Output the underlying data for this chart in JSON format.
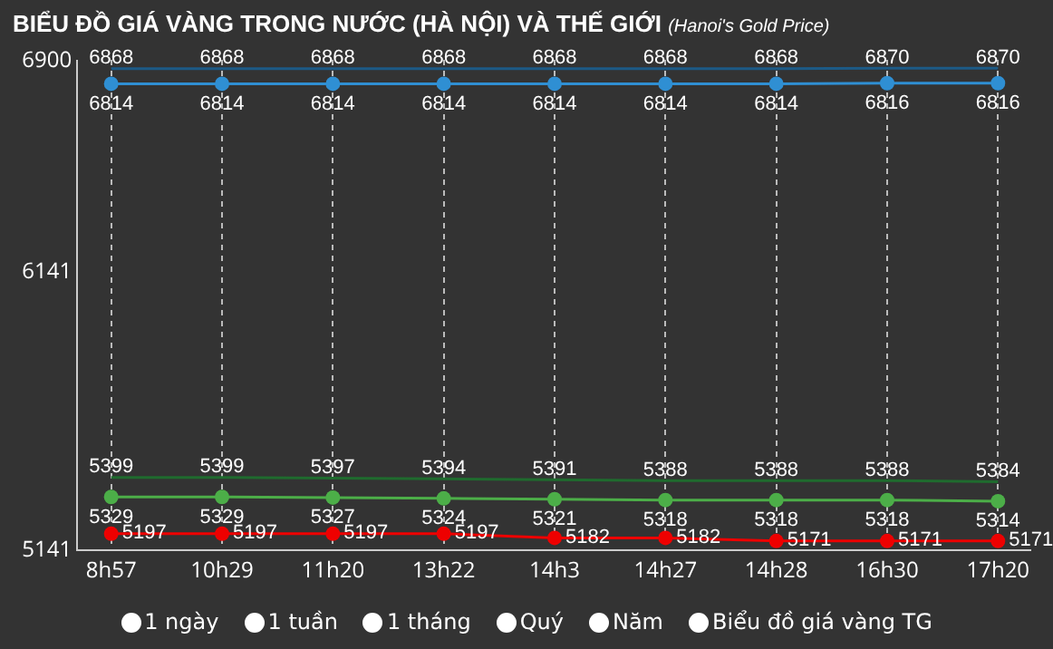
{
  "chart_data": {
    "type": "line",
    "title": "BIỂU ĐỒ GIÁ VÀNG TRONG NƯỚC (HÀ NỘI) VÀ THẾ GIỚI",
    "subtitle": "(Hanoi's Gold Price)",
    "categories": [
      "8h57",
      "10h29",
      "11h20",
      "13h22",
      "14h3",
      "14h27",
      "14h28",
      "16h30",
      "17h20"
    ],
    "series": [
      {
        "color": "#1c5a86",
        "marker": "none",
        "values": [
          6868,
          6868,
          6868,
          6868,
          6868,
          6868,
          6868,
          6870,
          6870
        ]
      },
      {
        "color": "#2f8fd3",
        "marker": "circle",
        "values": [
          6814,
          6814,
          6814,
          6814,
          6814,
          6814,
          6814,
          6816,
          6816
        ]
      },
      {
        "color": "#1f6b2e",
        "marker": "none",
        "values": [
          5399,
          5399,
          5397,
          5394,
          5391,
          5388,
          5388,
          5388,
          5384
        ]
      },
      {
        "color": "#4cae48",
        "marker": "circle",
        "values": [
          5329,
          5329,
          5327,
          5324,
          5321,
          5318,
          5318,
          5318,
          5314
        ]
      },
      {
        "color": "#ee0000",
        "marker": "circle",
        "values": [
          5197,
          5197,
          5197,
          5197,
          5182,
          5182,
          5171,
          5171,
          5171
        ]
      }
    ],
    "ylim": [
      5141,
      6900
    ],
    "yticks": [
      5141,
      6141,
      6900
    ],
    "grid": "x",
    "data_labels": true,
    "line_style": "solid",
    "annotations": [
      "1 ngày",
      "1 tuần",
      "1 tháng",
      "Quý",
      "Năm",
      "Biểu đồ giá vàng TG"
    ]
  }
}
